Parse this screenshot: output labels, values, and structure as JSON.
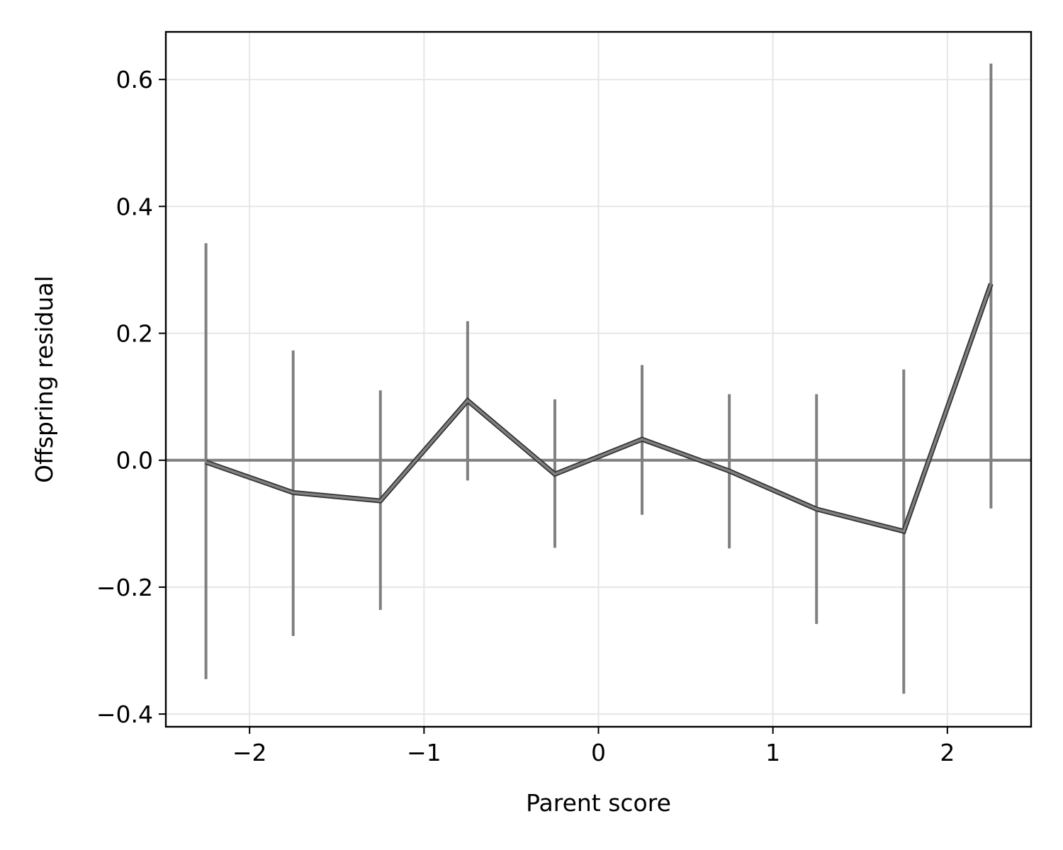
{
  "chart_data": {
    "type": "line",
    "title": "",
    "xlabel": "Parent score",
    "ylabel": "Offspring residual",
    "xlim": [
      -2.48,
      2.48
    ],
    "ylim": [
      -0.42,
      0.675
    ],
    "xticks": [
      -2,
      -1,
      0,
      1,
      2
    ],
    "xtick_labels": [
      "−2",
      "−1",
      "0",
      "1",
      "2"
    ],
    "yticks": [
      -0.4,
      -0.2,
      0.0,
      0.2,
      0.4,
      0.6
    ],
    "ytick_labels": [
      "−0.4",
      "−0.2",
      "0.0",
      "0.2",
      "0.4",
      "0.6"
    ],
    "grid": true,
    "reference_line_y": 0.0,
    "series": [
      {
        "x": [
          -2.25,
          -1.75,
          -1.25,
          -0.75,
          -0.25,
          0.25,
          0.75,
          1.25,
          1.75,
          2.25
        ],
        "y": [
          -0.003,
          -0.051,
          -0.064,
          0.094,
          -0.022,
          0.033,
          -0.017,
          -0.077,
          -0.112,
          0.278
        ],
        "yerr_low": [
          -0.345,
          -0.277,
          -0.236,
          -0.032,
          -0.138,
          -0.086,
          -0.139,
          -0.258,
          -0.368,
          -0.076
        ],
        "yerr_high": [
          0.342,
          0.173,
          0.11,
          0.219,
          0.096,
          0.15,
          0.104,
          0.104,
          0.143,
          0.625
        ]
      }
    ],
    "colors": {
      "line_outer": "#333333",
      "line_inner": "#808080",
      "errorbar": "#808080",
      "reference_line": "#808080",
      "grid": "#e6e6e6",
      "frame": "#000000"
    }
  }
}
